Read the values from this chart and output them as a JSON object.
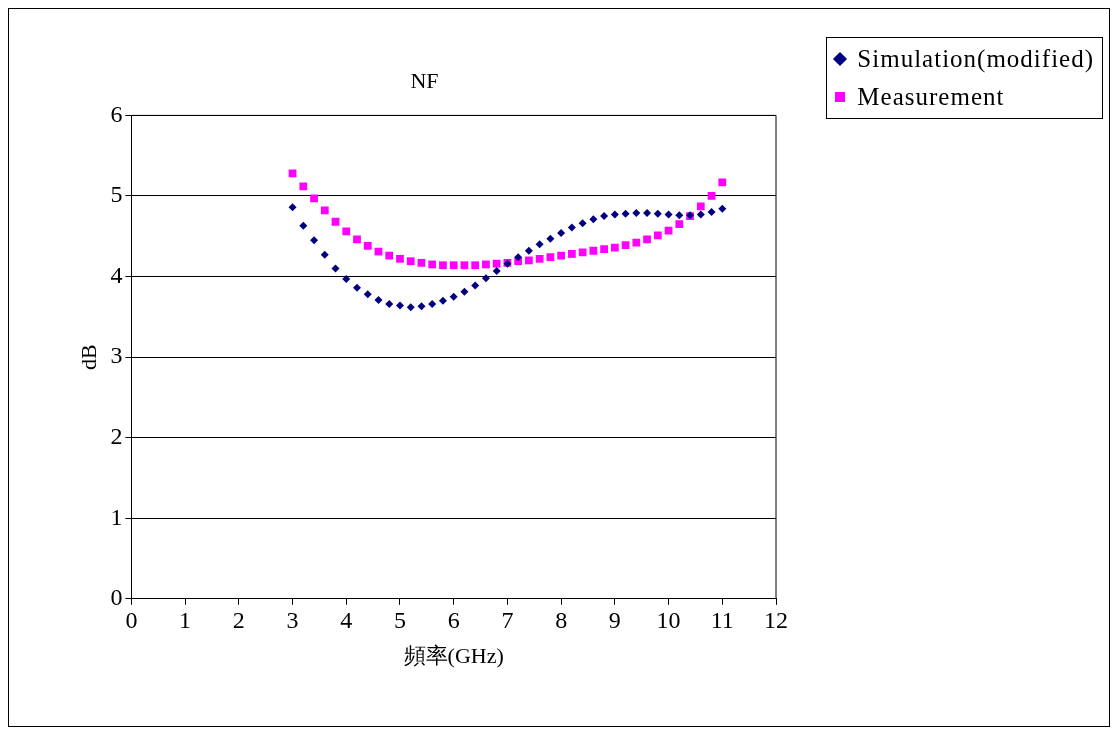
{
  "chart_data": {
    "type": "scatter",
    "title": "NF",
    "xlabel": "頻率(GHz)",
    "ylabel": "dB",
    "xlim": [
      0,
      12
    ],
    "xticks": [
      0,
      1,
      2,
      3,
      4,
      5,
      6,
      7,
      8,
      9,
      10,
      11,
      12
    ],
    "ylim": [
      0,
      6
    ],
    "yticks": [
      0,
      1,
      2,
      3,
      4,
      5,
      6
    ],
    "grid": "y",
    "legend": "top right",
    "series": [
      {
        "name": "Simulation(modified)",
        "color": "#000080",
        "marker": "diamond",
        "x": [
          3.0,
          3.2,
          3.4,
          3.6,
          3.8,
          4.0,
          4.2,
          4.4,
          4.6,
          4.8,
          5.0,
          5.2,
          5.4,
          5.6,
          5.8,
          6.0,
          6.2,
          6.4,
          6.6,
          6.8,
          7.0,
          7.2,
          7.4,
          7.6,
          7.8,
          8.0,
          8.2,
          8.4,
          8.6,
          8.8,
          9.0,
          9.2,
          9.4,
          9.6,
          9.8,
          10.0,
          10.2,
          10.4,
          10.6,
          10.8,
          11.0
        ],
        "values": [
          4.86,
          4.63,
          4.45,
          4.27,
          4.1,
          3.97,
          3.86,
          3.78,
          3.71,
          3.66,
          3.64,
          3.62,
          3.63,
          3.66,
          3.7,
          3.75,
          3.81,
          3.89,
          3.98,
          4.07,
          4.16,
          4.24,
          4.32,
          4.4,
          4.47,
          4.54,
          4.61,
          4.66,
          4.71,
          4.75,
          4.77,
          4.78,
          4.79,
          4.79,
          4.78,
          4.77,
          4.76,
          4.76,
          4.77,
          4.8,
          4.84
        ]
      },
      {
        "name": "Measurement",
        "color": "#ff00ff",
        "marker": "square",
        "x": [
          3.0,
          3.2,
          3.4,
          3.6,
          3.8,
          4.0,
          4.2,
          4.4,
          4.6,
          4.8,
          5.0,
          5.2,
          5.4,
          5.6,
          5.8,
          6.0,
          6.2,
          6.4,
          6.6,
          6.8,
          7.0,
          7.2,
          7.4,
          7.6,
          7.8,
          8.0,
          8.2,
          8.4,
          8.6,
          8.8,
          9.0,
          9.2,
          9.4,
          9.6,
          9.8,
          10.0,
          10.2,
          10.4,
          10.6,
          10.8,
          11.0
        ],
        "values": [
          5.28,
          5.12,
          4.97,
          4.82,
          4.68,
          4.56,
          4.46,
          4.38,
          4.31,
          4.26,
          4.22,
          4.19,
          4.17,
          4.15,
          4.14,
          4.14,
          4.14,
          4.14,
          4.15,
          4.16,
          4.17,
          4.19,
          4.2,
          4.22,
          4.24,
          4.26,
          4.28,
          4.3,
          4.32,
          4.34,
          4.36,
          4.39,
          4.42,
          4.46,
          4.51,
          4.57,
          4.65,
          4.75,
          4.87,
          5.0,
          5.17
        ]
      }
    ]
  }
}
